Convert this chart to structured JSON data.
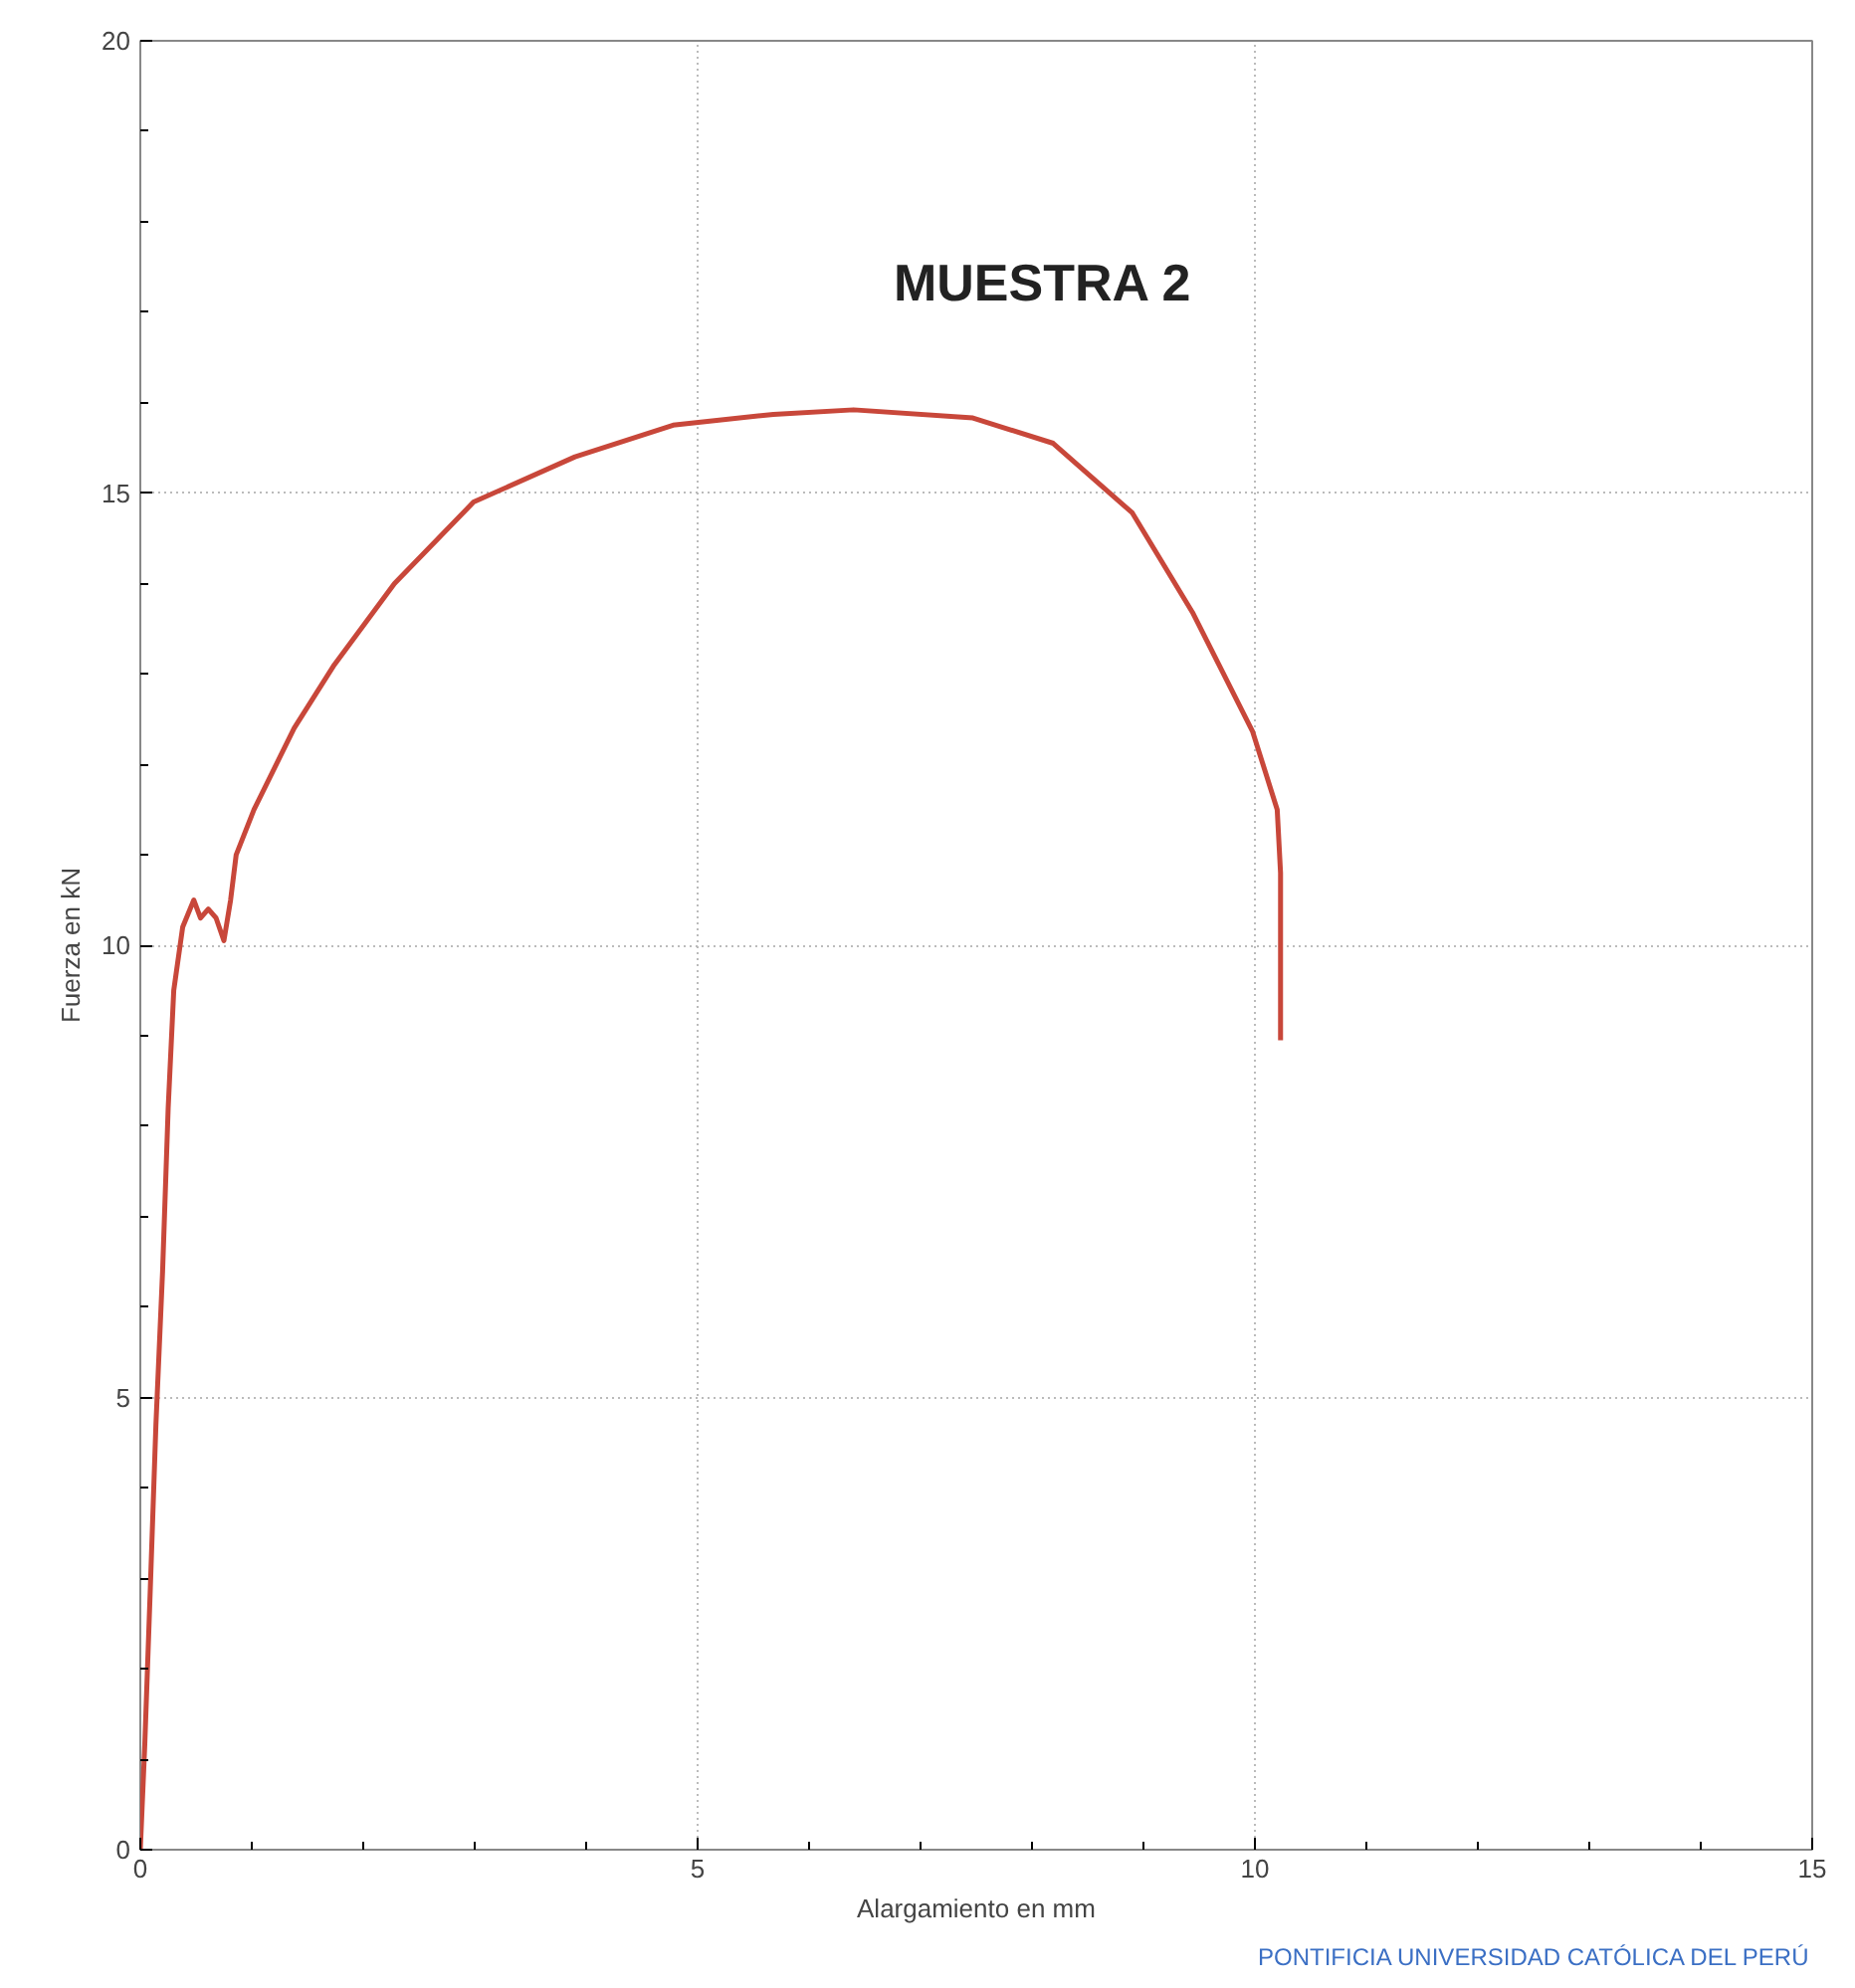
{
  "chart_data": {
    "type": "line",
    "title": "MUESTRA 2",
    "xlabel": "Alargamiento en mm",
    "ylabel": "Fuerza en kN",
    "x": [
      0,
      0.04,
      0.09,
      0.14,
      0.2,
      0.25,
      0.3,
      0.38,
      0.48,
      0.54,
      0.61,
      0.68,
      0.75,
      0.81,
      0.86,
      1.02,
      1.38,
      1.74,
      2.28,
      2.99,
      3.9,
      4.78,
      5.68,
      6.4,
      7.47,
      8.19,
      8.9,
      9.44,
      9.98,
      10.2,
      10.23,
      10.23
    ],
    "series": [
      {
        "color": "#c8473a",
        "values": [
          0,
          1.16,
          2.9,
          4.7,
          6.4,
          8.2,
          9.5,
          10.2,
          10.5,
          10.3,
          10.4,
          10.3,
          10.05,
          10.5,
          11.0,
          11.5,
          12.4,
          13.1,
          14.0,
          14.9,
          15.4,
          15.75,
          15.87,
          15.92,
          15.83,
          15.55,
          14.78,
          13.68,
          12.36,
          11.5,
          10.8,
          8.95
        ]
      }
    ],
    "xlim": [
      0,
      15
    ],
    "ylim": [
      0,
      20
    ],
    "xticks": [
      0,
      5,
      10,
      15
    ],
    "yticks": [
      0,
      5,
      10,
      15,
      20
    ],
    "grid": true,
    "marker": "none",
    "line_style": "solid",
    "annotations": [
      "PONTIFICIA UNIVERSIDAD CATÓLICA DEL PERÚ"
    ]
  }
}
